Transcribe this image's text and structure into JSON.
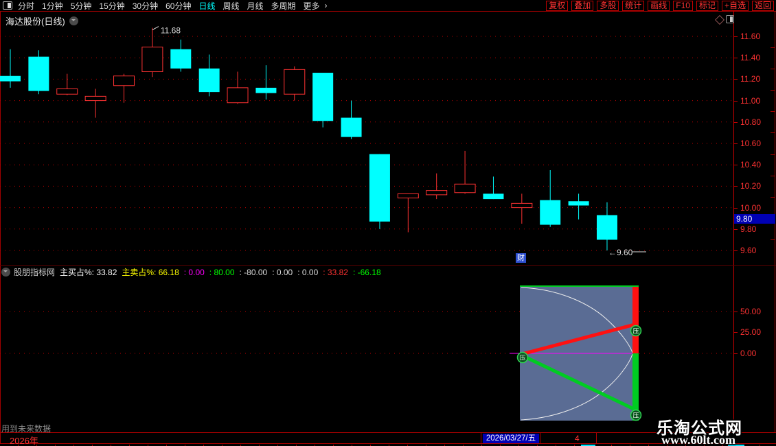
{
  "toolbar": {
    "periods": [
      "分时",
      "1分钟",
      "5分钟",
      "15分钟",
      "30分钟",
      "60分钟",
      "日线",
      "周线",
      "月线",
      "多周期",
      "更多"
    ],
    "active_period": "日线",
    "more_arrow": "›",
    "right_buttons": [
      "复权",
      "叠加",
      "多股",
      "统计",
      "画线",
      "F10",
      "标记",
      "+自选",
      "返回"
    ]
  },
  "chart_header": {
    "title": "海达股份(日线)"
  },
  "price_axis": {
    "current_price": "9.80"
  },
  "indicator": {
    "name": "股朋指标网",
    "fields": [
      {
        "label": "主买占%:",
        "value": "33.82",
        "color": "#ffffff"
      },
      {
        "label": "主卖占%:",
        "value": "66.18",
        "color": "#ffff00"
      },
      {
        "label": ":",
        "value": "0.00",
        "color": "#ff00ff"
      },
      {
        "label": ":",
        "value": "80.00",
        "color": "#00ff00"
      },
      {
        "label": ":",
        "value": "-80.00",
        "color": "#dddddd"
      },
      {
        "label": ":",
        "value": "0.00",
        "color": "#dddddd"
      },
      {
        "label": ":",
        "value": "0.00",
        "color": "#dddddd"
      },
      {
        "label": ":",
        "value": "33.82",
        "color": "#ff3232"
      },
      {
        "label": ":",
        "value": "-66.18",
        "color": "#00ff00"
      }
    ],
    "badge_label": "压"
  },
  "event_badge": "财",
  "bottom": {
    "future_note": "用到未来数据",
    "year": "2026年",
    "date": "2026/03/27/五",
    "count": "4"
  },
  "watermark": {
    "line1": "乐淘公式网",
    "line2": "www.60lt.com"
  },
  "chart_data": {
    "type": "candlestick",
    "title": "海达股份(日线)",
    "yticks": [
      11.6,
      11.4,
      11.2,
      11.0,
      10.8,
      10.6,
      10.4,
      10.2,
      10.0,
      9.8,
      9.6
    ],
    "ylim": [
      9.5,
      11.75
    ],
    "candles": [
      {
        "o": 11.23,
        "h": 11.48,
        "l": 11.12,
        "c": 11.18
      },
      {
        "o": 11.41,
        "h": 11.47,
        "l": 11.06,
        "c": 11.09
      },
      {
        "o": 11.06,
        "h": 11.25,
        "l": 11.05,
        "c": 11.11
      },
      {
        "o": 11.0,
        "h": 11.11,
        "l": 10.84,
        "c": 11.04
      },
      {
        "o": 11.14,
        "h": 11.25,
        "l": 10.98,
        "c": 11.23
      },
      {
        "o": 11.27,
        "h": 11.68,
        "l": 11.22,
        "c": 11.5
      },
      {
        "o": 11.48,
        "h": 11.57,
        "l": 11.27,
        "c": 11.3
      },
      {
        "o": 11.3,
        "h": 11.43,
        "l": 11.04,
        "c": 11.08
      },
      {
        "o": 10.98,
        "h": 11.27,
        "l": 10.97,
        "c": 11.12
      },
      {
        "o": 11.12,
        "h": 11.33,
        "l": 11.01,
        "c": 11.07
      },
      {
        "o": 11.06,
        "h": 11.32,
        "l": 11.0,
        "c": 11.29
      },
      {
        "o": 11.26,
        "h": 11.26,
        "l": 10.75,
        "c": 10.81
      },
      {
        "o": 10.84,
        "h": 11.0,
        "l": 10.64,
        "c": 10.66
      },
      {
        "o": 10.5,
        "h": 10.5,
        "l": 9.8,
        "c": 9.87
      },
      {
        "o": 10.09,
        "h": 10.13,
        "l": 9.77,
        "c": 10.13
      },
      {
        "o": 10.12,
        "h": 10.32,
        "l": 10.08,
        "c": 10.16
      },
      {
        "o": 10.14,
        "h": 10.53,
        "l": 10.13,
        "c": 10.22
      },
      {
        "o": 10.13,
        "h": 10.29,
        "l": 10.08,
        "c": 10.08
      },
      {
        "o": 10.0,
        "h": 10.13,
        "l": 9.85,
        "c": 10.04
      },
      {
        "o": 10.07,
        "h": 10.35,
        "l": 9.82,
        "c": 9.84
      },
      {
        "o": 10.06,
        "h": 10.13,
        "l": 9.89,
        "c": 10.02
      },
      {
        "o": 9.93,
        "h": 10.05,
        "l": 9.6,
        "c": 9.7
      }
    ],
    "annotations": {
      "high": {
        "index": 5,
        "value": 11.68,
        "label": "11.68"
      },
      "low": {
        "index": 21,
        "value": 9.6,
        "label": "←9.60"
      }
    },
    "last_price": 9.8,
    "indicator": {
      "buy_pct": 33.82,
      "sell_pct": 66.18,
      "yticks": [
        50,
        25,
        0
      ],
      "grid_levels": [
        50,
        0
      ],
      "box_range": [
        80,
        -80
      ],
      "red_line": {
        "from": 0,
        "to": 33.82
      },
      "green_line": {
        "from": 0,
        "to": -66.18
      }
    },
    "colors": {
      "up": "#ff3232",
      "down": "#00ffff",
      "grid": "#bc0000",
      "axis_text": "#ff3232",
      "panel": "#5a6c94",
      "magenta": "#ff00ff",
      "green": "#00cc22",
      "red": "#ff1111"
    }
  }
}
